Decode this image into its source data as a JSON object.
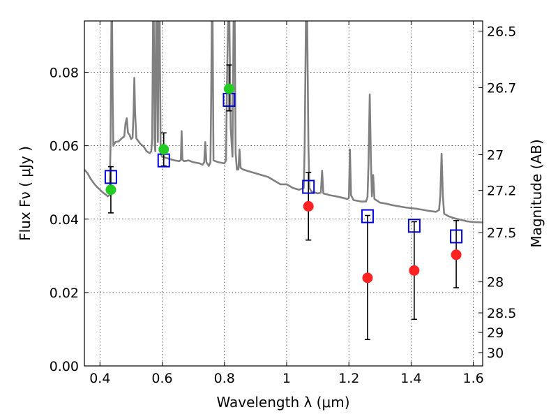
{
  "chart_data": {
    "type": "scatter",
    "xlabel": "Wavelength  λ (μm)",
    "ylabel": "Flux  Fν  ( μJy )",
    "y2label": "Magnitude (AB)",
    "xlim": [
      0.35,
      1.63
    ],
    "ylim": [
      0.0,
      0.094
    ],
    "grid": true,
    "x_ticks": [
      {
        "value": 0.4,
        "label": "0.4"
      },
      {
        "value": 0.6,
        "label": "0.6"
      },
      {
        "value": 0.8,
        "label": "0.8"
      },
      {
        "value": 1.0,
        "label": "1"
      },
      {
        "value": 1.2,
        "label": "1.2"
      },
      {
        "value": 1.4,
        "label": "1.4"
      },
      {
        "value": 1.6,
        "label": "1.6"
      }
    ],
    "y_ticks": [
      {
        "value": 0.0,
        "label": "0.00"
      },
      {
        "value": 0.02,
        "label": "0.02"
      },
      {
        "value": 0.04,
        "label": "0.04"
      },
      {
        "value": 0.06,
        "label": "0.06"
      },
      {
        "value": 0.08,
        "label": "0.08"
      }
    ],
    "y2_ticks": [
      {
        "value": 26.5,
        "label": "26.5"
      },
      {
        "value": 26.7,
        "label": "26.7"
      },
      {
        "value": 27.0,
        "label": "27"
      },
      {
        "value": 27.2,
        "label": "27.2"
      },
      {
        "value": 27.5,
        "label": "27.5"
      },
      {
        "value": 28.0,
        "label": "28"
      },
      {
        "value": 28.5,
        "label": "28.5"
      },
      {
        "value": 29.0,
        "label": "29"
      },
      {
        "value": 30.0,
        "label": "30"
      }
    ],
    "series": [
      {
        "kind": "model_spectrum",
        "color": "#808080",
        "points": [
          [
            0.35,
            0.0535
          ],
          [
            0.36,
            0.0525
          ],
          [
            0.37,
            0.051
          ],
          [
            0.38,
            0.0498
          ],
          [
            0.39,
            0.0488
          ],
          [
            0.4,
            0.048
          ],
          [
            0.41,
            0.0472
          ],
          [
            0.42,
            0.0466
          ],
          [
            0.425,
            0.0462
          ],
          [
            0.43,
            0.0465
          ],
          [
            0.432,
            0.052
          ],
          [
            0.434,
            0.06
          ],
          [
            0.4355,
            0.078
          ],
          [
            0.437,
            0.094
          ],
          [
            0.439,
            0.094
          ],
          [
            0.441,
            0.072
          ],
          [
            0.443,
            0.06
          ],
          [
            0.446,
            0.0605
          ],
          [
            0.45,
            0.061
          ],
          [
            0.46,
            0.0612
          ],
          [
            0.47,
            0.062
          ],
          [
            0.478,
            0.0625
          ],
          [
            0.482,
            0.066
          ],
          [
            0.486,
            0.0675
          ],
          [
            0.49,
            0.0635
          ],
          [
            0.495,
            0.063
          ],
          [
            0.5,
            0.0618
          ],
          [
            0.505,
            0.0622
          ],
          [
            0.508,
            0.069
          ],
          [
            0.5105,
            0.0785
          ],
          [
            0.513,
            0.069
          ],
          [
            0.517,
            0.062
          ],
          [
            0.53,
            0.0605
          ],
          [
            0.54,
            0.0598
          ],
          [
            0.55,
            0.0585
          ],
          [
            0.56,
            0.058
          ],
          [
            0.565,
            0.0585
          ],
          [
            0.568,
            0.062
          ],
          [
            0.5705,
            0.094
          ],
          [
            0.573,
            0.094
          ],
          [
            0.576,
            0.06
          ],
          [
            0.578,
            0.0585
          ],
          [
            0.5805,
            0.094
          ],
          [
            0.583,
            0.094
          ],
          [
            0.586,
            0.061
          ],
          [
            0.589,
            0.094
          ],
          [
            0.592,
            0.094
          ],
          [
            0.595,
            0.058
          ],
          [
            0.6,
            0.057
          ],
          [
            0.62,
            0.0565
          ],
          [
            0.64,
            0.056
          ],
          [
            0.655,
            0.0558
          ],
          [
            0.66,
            0.0562
          ],
          [
            0.6625,
            0.064
          ],
          [
            0.665,
            0.0562
          ],
          [
            0.67,
            0.0558
          ],
          [
            0.685,
            0.056
          ],
          [
            0.7,
            0.0555
          ],
          [
            0.72,
            0.0552
          ],
          [
            0.73,
            0.0548
          ],
          [
            0.735,
            0.0555
          ],
          [
            0.7385,
            0.061
          ],
          [
            0.742,
            0.0555
          ],
          [
            0.75,
            0.0545
          ],
          [
            0.755,
            0.0555
          ],
          [
            0.757,
            0.07
          ],
          [
            0.7595,
            0.094
          ],
          [
            0.762,
            0.094
          ],
          [
            0.765,
            0.056
          ],
          [
            0.78,
            0.0555
          ],
          [
            0.8,
            0.0552
          ],
          [
            0.805,
            0.056
          ],
          [
            0.8085,
            0.078
          ],
          [
            0.812,
            0.094
          ],
          [
            0.816,
            0.094
          ],
          [
            0.82,
            0.065
          ],
          [
            0.826,
            0.057
          ],
          [
            0.8295,
            0.094
          ],
          [
            0.833,
            0.094
          ],
          [
            0.836,
            0.058
          ],
          [
            0.84,
            0.0535
          ],
          [
            0.845,
            0.0535
          ],
          [
            0.8485,
            0.059
          ],
          [
            0.852,
            0.054
          ],
          [
            0.86,
            0.0535
          ],
          [
            0.88,
            0.053
          ],
          [
            0.9,
            0.0525
          ],
          [
            0.92,
            0.052
          ],
          [
            0.94,
            0.0515
          ],
          [
            0.96,
            0.0505
          ],
          [
            0.98,
            0.0495
          ],
          [
            1.0,
            0.0495
          ],
          [
            1.02,
            0.0485
          ],
          [
            1.04,
            0.048
          ],
          [
            1.055,
            0.0485
          ],
          [
            1.058,
            0.06
          ],
          [
            1.062,
            0.094
          ],
          [
            1.066,
            0.094
          ],
          [
            1.07,
            0.06
          ],
          [
            1.073,
            0.0485
          ],
          [
            1.08,
            0.0475
          ],
          [
            1.1,
            0.047
          ],
          [
            1.11,
            0.0472
          ],
          [
            1.114,
            0.0532
          ],
          [
            1.118,
            0.047
          ],
          [
            1.14,
            0.0465
          ],
          [
            1.16,
            0.0462
          ],
          [
            1.18,
            0.0458
          ],
          [
            1.195,
            0.0455
          ],
          [
            1.2,
            0.0458
          ],
          [
            1.2035,
            0.059
          ],
          [
            1.207,
            0.0465
          ],
          [
            1.215,
            0.0452
          ],
          [
            1.24,
            0.0448
          ],
          [
            1.255,
            0.0448
          ],
          [
            1.26,
            0.046
          ],
          [
            1.263,
            0.055
          ],
          [
            1.267,
            0.074
          ],
          [
            1.271,
            0.055
          ],
          [
            1.274,
            0.0462
          ],
          [
            1.278,
            0.052
          ],
          [
            1.282,
            0.0455
          ],
          [
            1.3,
            0.0445
          ],
          [
            1.32,
            0.0442
          ],
          [
            1.34,
            0.0438
          ],
          [
            1.36,
            0.0435
          ],
          [
            1.38,
            0.0432
          ],
          [
            1.4,
            0.043
          ],
          [
            1.42,
            0.0428
          ],
          [
            1.44,
            0.0425
          ],
          [
            1.46,
            0.0422
          ],
          [
            1.48,
            0.042
          ],
          [
            1.49,
            0.0425
          ],
          [
            1.494,
            0.0465
          ],
          [
            1.498,
            0.0578
          ],
          [
            1.502,
            0.0465
          ],
          [
            1.506,
            0.0415
          ],
          [
            1.52,
            0.0408
          ],
          [
            1.54,
            0.0402
          ],
          [
            1.56,
            0.0398
          ],
          [
            1.58,
            0.0394
          ],
          [
            1.6,
            0.0392
          ],
          [
            1.63,
            0.0391
          ]
        ]
      },
      {
        "kind": "observed_detection",
        "color": "#22cc22",
        "marker": "circle",
        "points": [
          {
            "x": 0.435,
            "y": 0.048,
            "err_low": 0.0063,
            "err_high": 0.0063
          },
          {
            "x": 0.605,
            "y": 0.059,
            "err_low": 0.0045,
            "err_high": 0.0045
          },
          {
            "x": 0.815,
            "y": 0.0755,
            "err_low": 0.006,
            "err_high": 0.0065
          }
        ]
      },
      {
        "kind": "observed_lowsn",
        "color": "#ff2222",
        "marker": "circle",
        "points": [
          {
            "x": 1.07,
            "y": 0.0435,
            "err_low": 0.0092,
            "err_high": 0.0092
          },
          {
            "x": 1.26,
            "y": 0.024,
            "err_low": 0.0168,
            "err_high": 0.017
          },
          {
            "x": 1.41,
            "y": 0.026,
            "err_low": 0.0133,
            "err_high": 0.0133
          },
          {
            "x": 1.545,
            "y": 0.0303,
            "err_low": 0.009,
            "err_high": 0.0093
          }
        ]
      },
      {
        "kind": "model_photometry",
        "color": "#0000dd",
        "marker": "square",
        "points": [
          {
            "x": 0.435,
            "y": 0.0515
          },
          {
            "x": 0.605,
            "y": 0.056
          },
          {
            "x": 0.815,
            "y": 0.0725
          },
          {
            "x": 1.07,
            "y": 0.0488
          },
          {
            "x": 1.26,
            "y": 0.0408
          },
          {
            "x": 1.41,
            "y": 0.0382
          },
          {
            "x": 1.545,
            "y": 0.0353
          }
        ]
      }
    ]
  }
}
